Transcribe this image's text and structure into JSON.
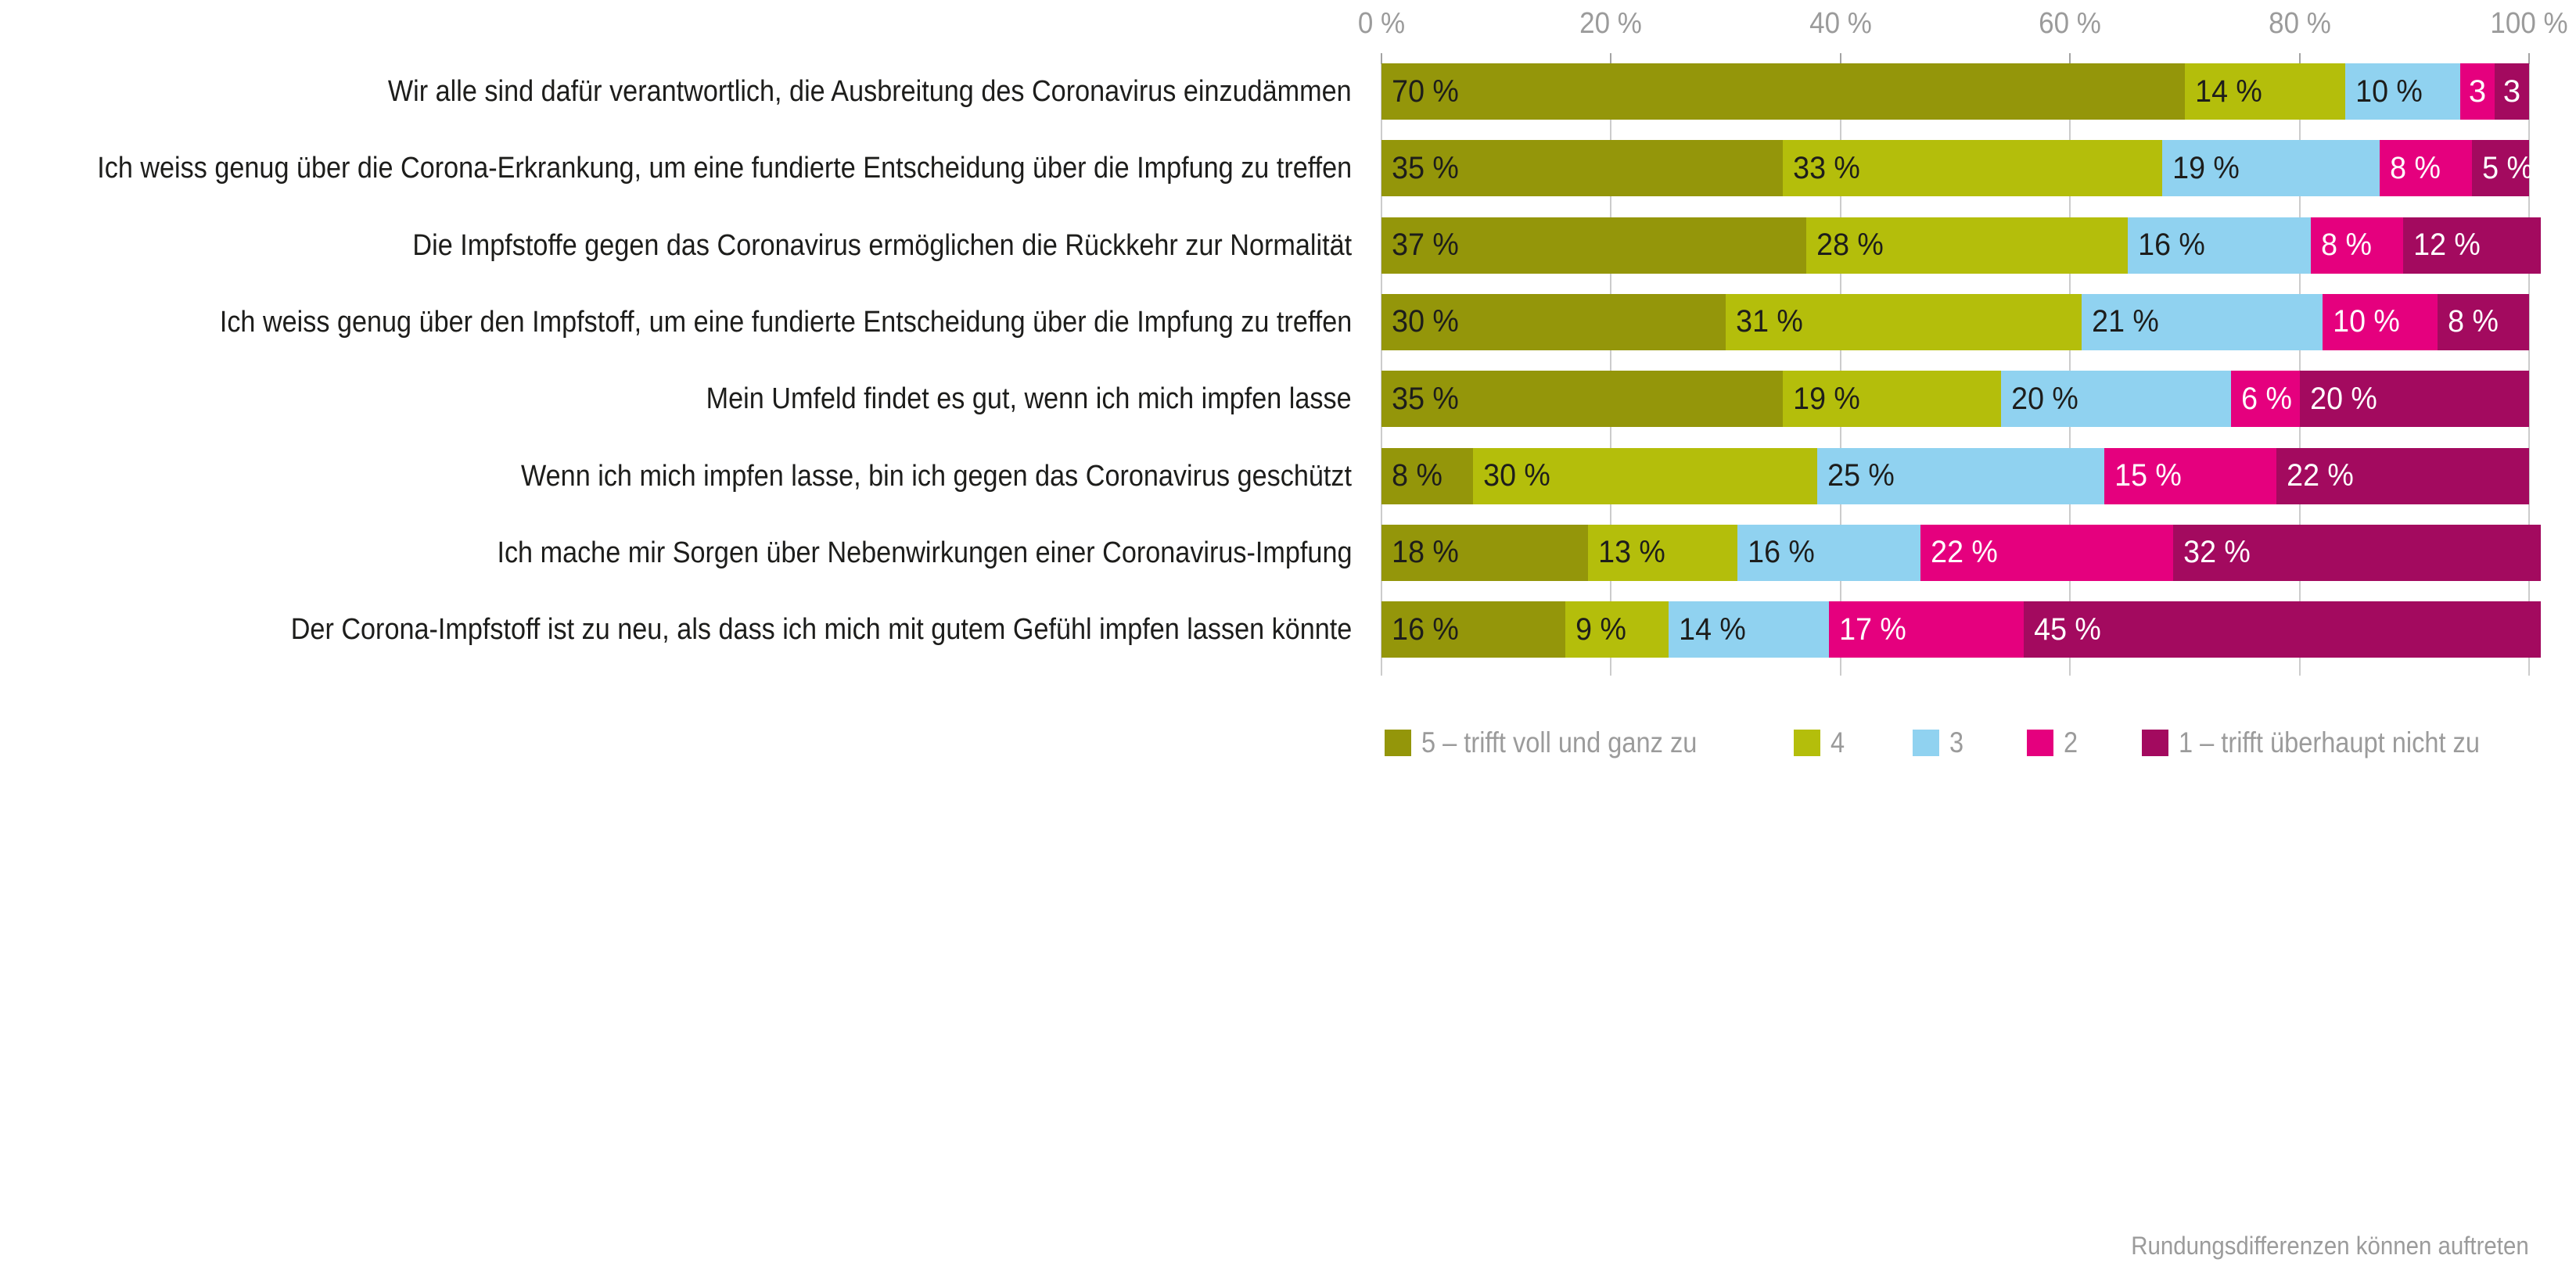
{
  "chart_data": {
    "type": "bar",
    "stacked": true,
    "orientation": "horizontal",
    "xlim": [
      0,
      100
    ],
    "grid": true,
    "x_ticks": [
      {
        "value": 0,
        "label": "0 %"
      },
      {
        "value": 20,
        "label": "20 %"
      },
      {
        "value": 40,
        "label": "40 %"
      },
      {
        "value": 60,
        "label": "60 %"
      },
      {
        "value": 80,
        "label": "80 %"
      },
      {
        "value": 100,
        "label": "100 %"
      }
    ],
    "legend_position": "bottom",
    "series_meta": [
      {
        "name": "5 – trifft voll und ganz zu",
        "color": "#94960a",
        "text_color": "#1d1d1b"
      },
      {
        "name": "4",
        "color": "#b4be0b",
        "text_color": "#1d1d1b"
      },
      {
        "name": "3",
        "color": "#90d2f0",
        "text_color": "#1d1d1b"
      },
      {
        "name": "2",
        "color": "#e5007e",
        "text_color": "#ffffff"
      },
      {
        "name": "1 – trifft überhaupt nicht zu",
        "color": "#a30a5f",
        "text_color": "#ffffff"
      }
    ],
    "categories": [
      "Wir alle sind dafür verantwortlich, die Ausbreitung des Coronavirus einzudämmen",
      "Ich weiss genug über die Corona-Erkrankung, um eine fundierte Entscheidung über die Impfung zu treffen",
      "Die Impfstoffe gegen das Coronavirus ermöglichen die Rückkehr zur Normalität",
      "Ich weiss genug über den Impfstoff, um eine fundierte Entscheidung über die Impfung zu treffen",
      "Mein Umfeld findet es gut, wenn ich mich impfen lasse",
      "Wenn ich mich impfen lasse, bin ich gegen das Coronavirus geschützt",
      "Ich mache mir Sorgen über Nebenwirkungen einer Coronavirus-Impfung",
      "Der Corona-Impfstoff ist zu neu, als dass ich mich mit gutem Gefühl impfen lassen könnte"
    ],
    "rows": [
      {
        "values": [
          70,
          14,
          10,
          3,
          3
        ],
        "display": [
          "70 %",
          "14 %",
          "10 %",
          "3",
          "3"
        ]
      },
      {
        "values": [
          35,
          33,
          19,
          8,
          5
        ],
        "display": [
          "35 %",
          "33 %",
          "19 %",
          "8 %",
          "5 %"
        ]
      },
      {
        "values": [
          37,
          28,
          16,
          8,
          12
        ],
        "display": [
          "37 %",
          "28 %",
          "16 %",
          "8 %",
          "12 %"
        ]
      },
      {
        "values": [
          30,
          31,
          21,
          10,
          8
        ],
        "display": [
          "30 %",
          "31 %",
          "21 %",
          "10 %",
          "8 %"
        ]
      },
      {
        "values": [
          35,
          19,
          20,
          6,
          20
        ],
        "display": [
          "35 %",
          "19 %",
          "20 %",
          "6 %",
          "20 %"
        ]
      },
      {
        "values": [
          8,
          30,
          25,
          15,
          22
        ],
        "display": [
          "8 %",
          "30 %",
          "25 %",
          "15 %",
          "22 %"
        ]
      },
      {
        "values": [
          18,
          13,
          16,
          22,
          32
        ],
        "display": [
          "18 %",
          "13 %",
          "16 %",
          "22 %",
          "32 %"
        ]
      },
      {
        "values": [
          16,
          9,
          14,
          17,
          45
        ],
        "display": [
          "16 %",
          "9 %",
          "14 %",
          "17 %",
          "45 %"
        ]
      }
    ]
  },
  "footer": {
    "note": "Rundungsdifferenzen können auftreten"
  }
}
